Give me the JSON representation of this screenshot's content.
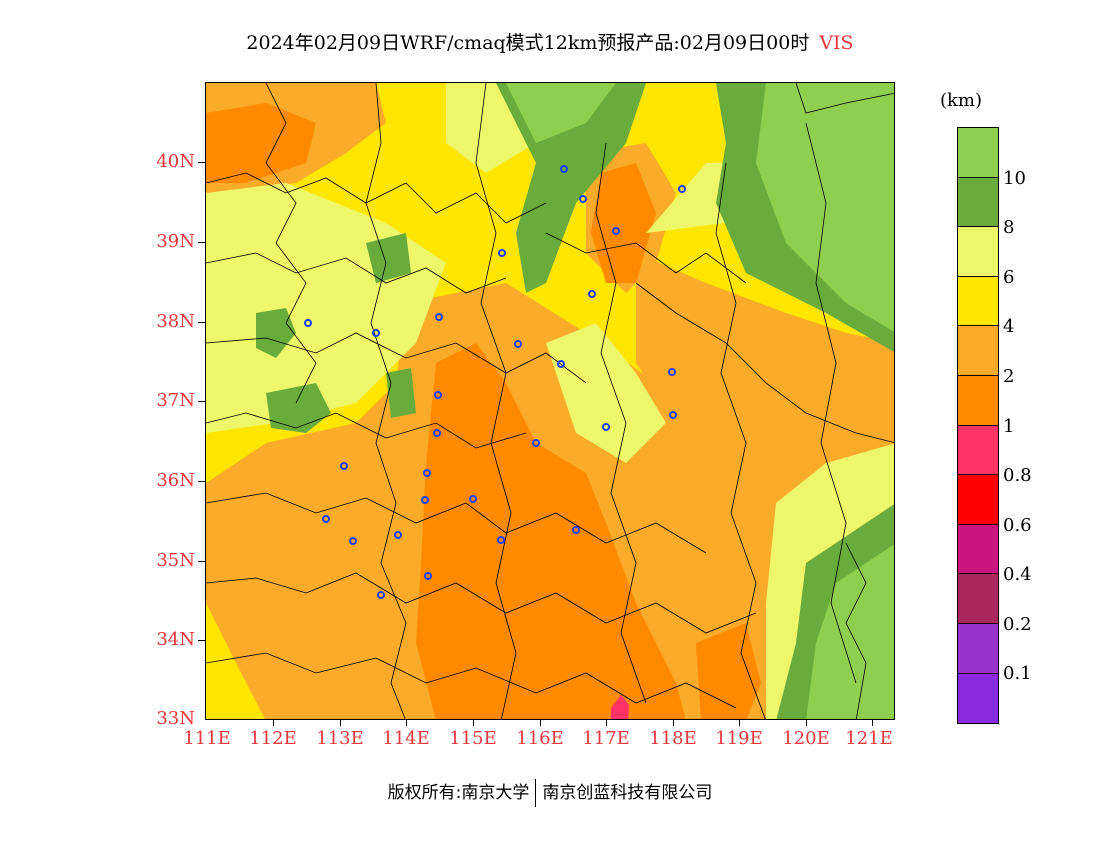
{
  "header": {
    "title": "2024年02月09日WRF/cmaq模式12km预报产品:02月09日00时",
    "variable": "VIS"
  },
  "map": {
    "lat_labels": [
      "40N",
      "39N",
      "38N",
      "37N",
      "36N",
      "35N",
      "34N",
      "33N"
    ],
    "lon_labels": [
      "111E",
      "112E",
      "113E",
      "114E",
      "115E",
      "116E",
      "117E",
      "118E",
      "119E",
      "120E",
      "121E"
    ],
    "lon_range": [
      111,
      121.4
    ],
    "lat_range": [
      33,
      41
    ]
  },
  "legend": {
    "unit": "(km)",
    "labels": [
      "10",
      "8",
      "6",
      "4",
      "2",
      "1",
      "0.8",
      "0.6",
      "0.4",
      "0.2",
      "0.1"
    ],
    "colors": [
      "#8fcf50",
      "#69ac3b",
      "#eef76a",
      "#ffe600",
      "#fbab2a",
      "#ff8a00",
      "#ff3366",
      "#ff0000",
      "#cc1580",
      "#a9275a",
      "#9933cc",
      "#8a2be2"
    ]
  },
  "footer": {
    "left": "版权所有:南京大学",
    "right": "南京创蓝科技有限公司"
  }
}
